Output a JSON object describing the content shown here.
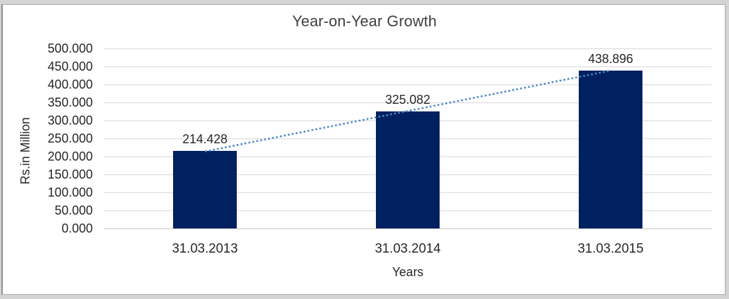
{
  "chart_data": {
    "type": "bar",
    "title": "Year-on-Year Growth",
    "categories": [
      "31.03.2013",
      "31.03.2014",
      "31.03.2015"
    ],
    "values": [
      214.428,
      325.082,
      438.896
    ],
    "data_labels": [
      "214.428",
      "325.082",
      "438.896"
    ],
    "xlabel": "Years",
    "ylabel": "Rs.in Million",
    "ylim": [
      0,
      500
    ],
    "ytick_step": 50,
    "ytick_labels": [
      "0.000",
      "50.000",
      "100.000",
      "150.000",
      "200.000",
      "250.000",
      "300.000",
      "350.000",
      "400.000",
      "450.000",
      "500.000"
    ],
    "grid": true,
    "legend": "none",
    "trendline": {
      "type": "linear",
      "style": "dotted",
      "color": "#4e86c6"
    },
    "colors": {
      "bar": "#002060",
      "trendline": "#4e86c6",
      "gridline": "#d9d9d9",
      "axis_line": "#c6c6c6",
      "text": "#262626",
      "title": "#404040",
      "panel_border": "#a9a9a9",
      "page_background": "#d4d4d4",
      "panel_background": "#ffffff"
    }
  }
}
